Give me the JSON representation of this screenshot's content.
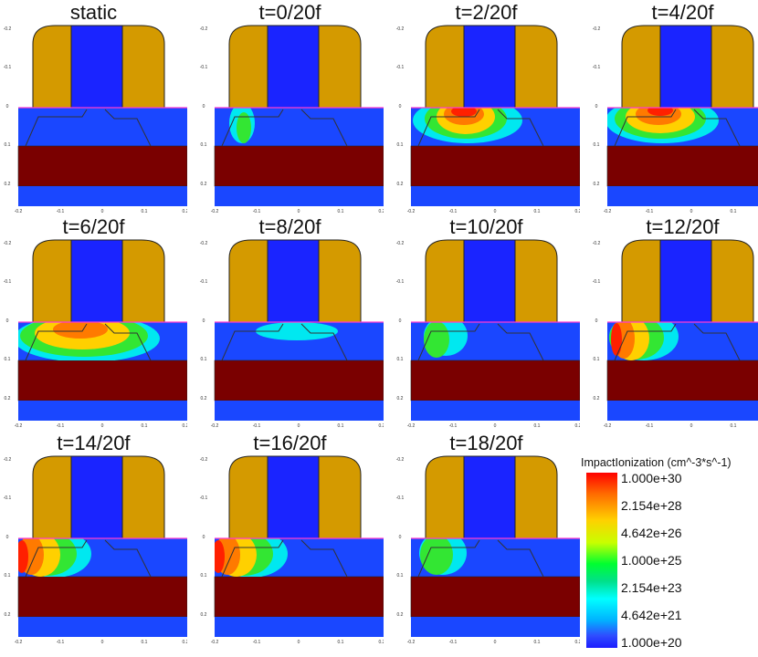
{
  "panels": [
    {
      "title": "static"
    },
    {
      "title": "t=0/20f"
    },
    {
      "title": "t=2/20f"
    },
    {
      "title": "t=4/20f"
    },
    {
      "title": "t=6/20f"
    },
    {
      "title": "t=8/20f"
    },
    {
      "title": "t=10/20f"
    },
    {
      "title": "t=12/20f"
    },
    {
      "title": "t=14/20f"
    },
    {
      "title": "t=16/20f"
    },
    {
      "title": "t=18/20f"
    }
  ],
  "axes": {
    "y_ticks": [
      "-0.2",
      "-0.1",
      "0",
      "0.1",
      "0.2"
    ],
    "x_ticks": [
      "-0.2",
      "-0.1",
      "0",
      "0.1",
      "0.2"
    ]
  },
  "legend": {
    "title": "ImpactIonization (cm^-3*s^-1)",
    "labels": [
      "1.000e+30",
      "2.154e+28",
      "4.642e+26",
      "1.000e+25",
      "2.154e+23",
      "4.642e+21",
      "1.000e+20"
    ]
  },
  "colors": {
    "spacer": "#d49a00",
    "gate": "#1a24ff",
    "substrate": "#1a47ff",
    "box": "#7a0000",
    "red": "#ff2000",
    "orange": "#ff7a00",
    "yellow": "#ffd000",
    "green": "#33e633",
    "cyan": "#00e8f0"
  }
}
